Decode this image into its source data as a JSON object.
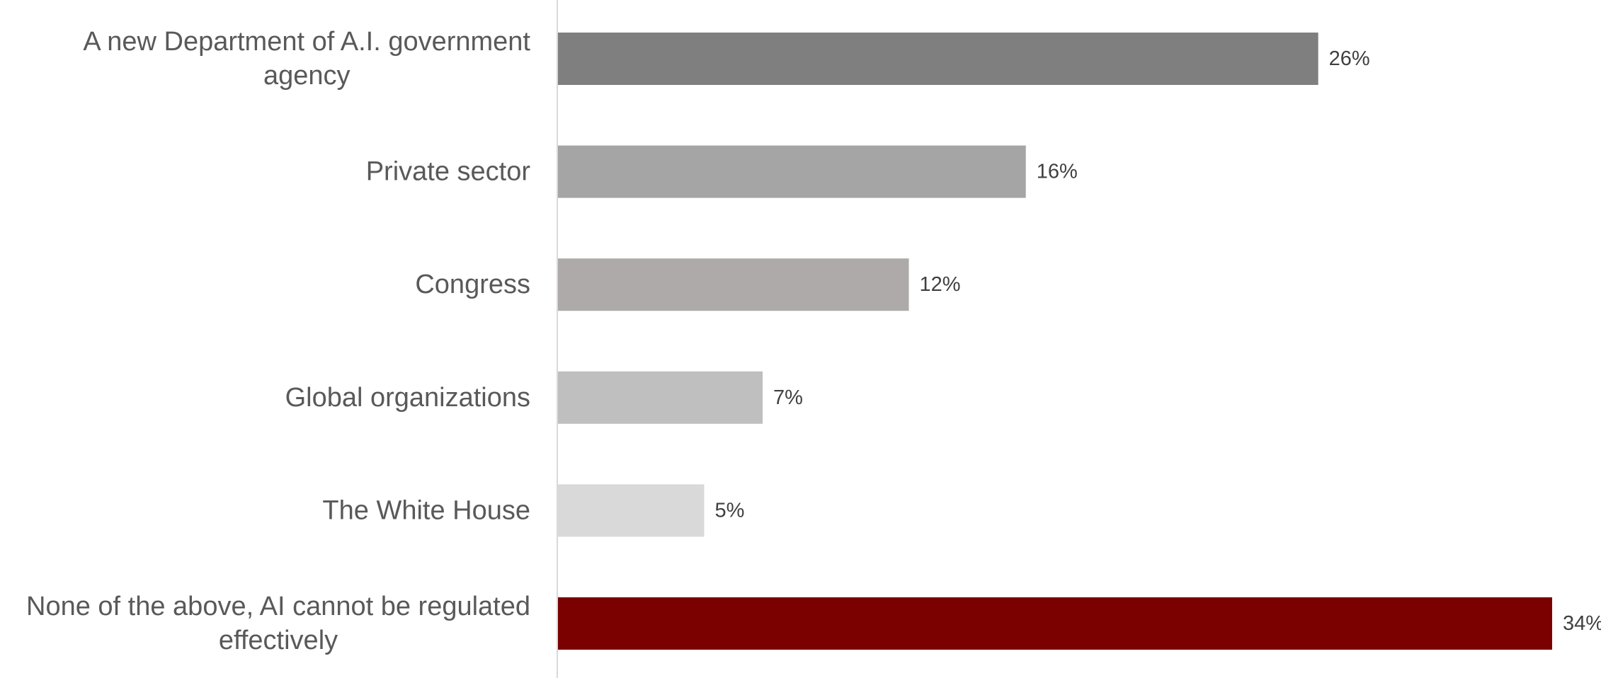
{
  "chart_data": {
    "type": "bar",
    "orientation": "horizontal",
    "categories": [
      "A new Department of A.I. government agency",
      "Private sector",
      "Congress",
      "Global organizations",
      "The White House",
      "None of the above, AI cannot be regulated effectively"
    ],
    "category_lines": [
      [
        "A new Department of A.I. government",
        "agency"
      ],
      [
        "Private sector"
      ],
      [
        "Congress"
      ],
      [
        "Global organizations"
      ],
      [
        "The White House"
      ],
      [
        "None of the above, AI cannot be regulated",
        "effectively"
      ]
    ],
    "values": [
      26,
      16,
      12,
      7,
      5,
      34
    ],
    "value_labels": [
      "26%",
      "16%",
      "12%",
      "7%",
      "5%",
      "34%"
    ],
    "colors": [
      "#7f7f7f",
      "#a5a5a5",
      "#aeaaaa",
      "#bfbfbf",
      "#d9d9d9",
      "#7b0000"
    ],
    "axis_color": "#d9d9d9",
    "grid": false,
    "legend": "none",
    "xlim": [
      0,
      34
    ]
  }
}
